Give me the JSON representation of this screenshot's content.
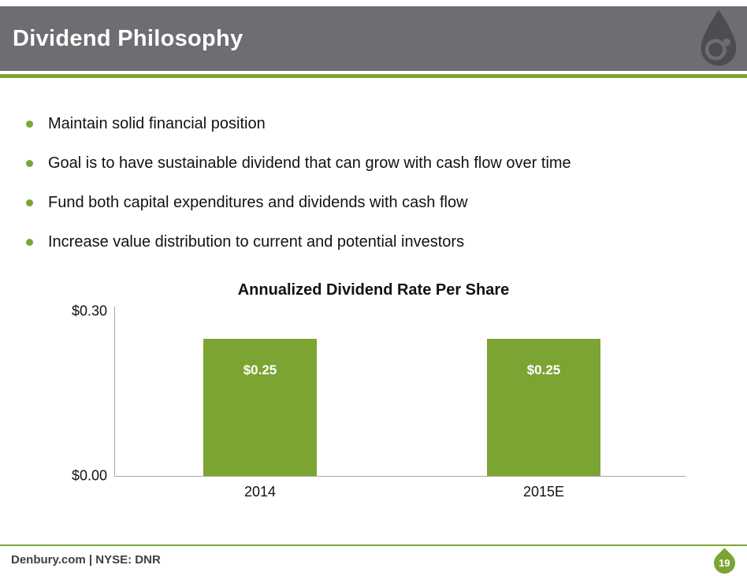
{
  "header": {
    "title": "Dividend Philosophy"
  },
  "bullets": [
    "Maintain solid financial position",
    "Goal is to have sustainable dividend that can grow with cash flow over time",
    "Fund both capital expenditures and dividends with cash flow",
    "Increase value distribution to current and potential investors"
  ],
  "chart_data": {
    "type": "bar",
    "title": "Annualized Dividend Rate Per Share",
    "categories": [
      "2014",
      "2015E"
    ],
    "values": [
      0.25,
      0.25
    ],
    "bar_labels": [
      "$0.25",
      "$0.25"
    ],
    "xlabel": "",
    "ylabel": "",
    "ylim": [
      0,
      0.3
    ],
    "yticks": [
      {
        "value": 0.0,
        "label": "$0.00"
      },
      {
        "value": 0.3,
        "label": "$0.30"
      }
    ],
    "grid": false,
    "legend": false,
    "bar_color": "#7CA433",
    "bar_label_color": "#ffffff"
  },
  "footer": {
    "site": "Denbury.com | NYSE: DNR",
    "page": "19"
  },
  "colors": {
    "header_bg": "#6d6e71",
    "accent_green": "#7CA433",
    "logo_dark": "#4c4d4f"
  }
}
